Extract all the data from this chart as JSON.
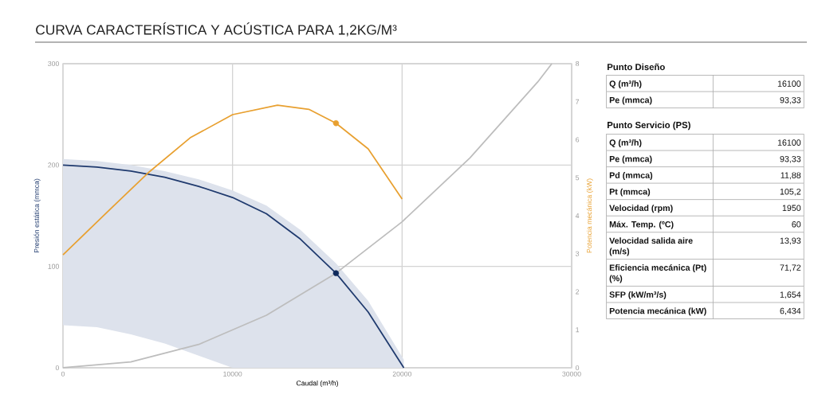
{
  "chart_data": [
    {
      "type": "line",
      "title": "CURVA CARACTERÍSTICA Y ACÚSTICA PARA 1,2KG/M³",
      "xlabel": "Caudal (m³/h)",
      "ylabel": "Presión estática (mmca)",
      "y2label": "Potencia mecánica (kW)",
      "xlim": [
        0,
        30000
      ],
      "xticks": [
        0,
        10000,
        20000,
        30000
      ],
      "ylim": [
        0,
        300
      ],
      "yticks": [
        0,
        100,
        200,
        300
      ],
      "y2lim": [
        0,
        8
      ],
      "y2ticks": [
        0,
        1,
        2,
        3,
        4,
        5,
        6,
        7,
        8
      ],
      "grid": true,
      "series": [
        {
          "color": "#1f3a6e",
          "x": [
            0,
            2000,
            4000,
            6000,
            8000,
            10000,
            12000,
            14000,
            16100,
            18000,
            20100
          ],
          "values": [
            200,
            198,
            194,
            188,
            179,
            168,
            152,
            127,
            93.33,
            55,
            0
          ],
          "lower": [
            42,
            40,
            33,
            24,
            12,
            0,
            0,
            0,
            0,
            0,
            0
          ],
          "upper": [
            206,
            204,
            200,
            194,
            186,
            175,
            160,
            136,
            103,
            66,
            8
          ]
        },
        {
          "color": "#e8a030",
          "axis": "y2",
          "x": [
            0,
            2500,
            5000,
            7500,
            10000,
            12650,
            14500,
            16100,
            18000,
            20000
          ],
          "values": [
            2.97,
            4.05,
            5.12,
            6.05,
            6.66,
            6.91,
            6.8,
            6.434,
            5.76,
            4.44
          ]
        },
        {
          "color": "#bdbdbd",
          "x": [
            0,
            4000,
            8000,
            12000,
            16100,
            20000,
            24000,
            28000,
            28830
          ],
          "values": [
            0,
            5.8,
            23,
            51.8,
            93.33,
            144,
            207,
            282,
            300
          ]
        },
        {
          "type": "scatter",
          "marker": "circle",
          "color": "#0f2a5c",
          "x": [
            16100
          ],
          "values": [
            93.33
          ]
        },
        {
          "type": "scatter",
          "marker": "circle",
          "color": "#e8a030",
          "axis": "y2",
          "x": [
            16100
          ],
          "values": [
            6.434
          ]
        }
      ]
    },
    {
      "type": "other",
      "title": "Punto Diseño",
      "categories": [
        "Q (m³/h)",
        "Pe (mmca)"
      ],
      "value_labels": [
        "16100",
        "93,33"
      ]
    },
    {
      "type": "other",
      "title": "Punto Servicio (PS)",
      "categories": [
        "Q (m³/h)",
        "Pe (mmca)",
        "Pd (mmca)",
        "Pt (mmca)",
        "Velocidad (rpm)",
        "Máx. Temp. (ºC)",
        "Velocidad salida aire (m/s)",
        "Eficiencia mecánica (Pt) (%)",
        "SFP (kW/m³/s)",
        "Potencia mecánica (kW)"
      ],
      "value_labels": [
        "16100",
        "93,33",
        "11,88",
        "105,2",
        "1950",
        "60",
        "13,93",
        "71,72",
        "1,654",
        "6,434"
      ]
    }
  ]
}
